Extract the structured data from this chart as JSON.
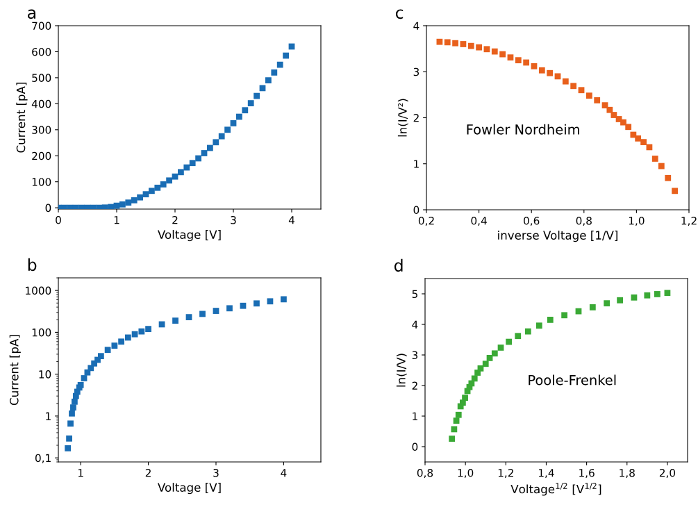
{
  "chart_data": [
    {
      "type": "scatter",
      "title": "a",
      "xlabel": "Voltage [V]",
      "ylabel": "Current [pA]",
      "marker": "square",
      "grid": false,
      "xlim": [
        0,
        4.5
      ],
      "xticks": [
        0,
        1,
        2,
        3,
        4
      ],
      "ylim": [
        -5,
        700
      ],
      "yticks": [
        0,
        100,
        200,
        300,
        400,
        500,
        600,
        700
      ],
      "series": [
        {
          "color": "#1a6db4",
          "x": [
            0,
            0.1,
            0.2,
            0.3,
            0.4,
            0.5,
            0.6,
            0.7,
            0.8,
            0.9,
            1.0,
            1.1,
            1.2,
            1.3,
            1.4,
            1.5,
            1.6,
            1.7,
            1.8,
            1.9,
            2.0,
            2.1,
            2.2,
            2.3,
            2.4,
            2.5,
            2.6,
            2.7,
            2.8,
            2.9,
            3.0,
            3.1,
            3.2,
            3.3,
            3.4,
            3.5,
            3.6,
            3.7,
            3.8,
            3.9,
            4.0
          ],
          "values": [
            0,
            0,
            0,
            0,
            0,
            0,
            0,
            0,
            1,
            3,
            8,
            13,
            20,
            29,
            40,
            52,
            65,
            77,
            90,
            105,
            120,
            137,
            155,
            172,
            190,
            210,
            230,
            252,
            275,
            300,
            325,
            350,
            375,
            402,
            430,
            460,
            490,
            520,
            550,
            585,
            620
          ]
        }
      ]
    },
    {
      "type": "scatter",
      "title": "b",
      "xlabel": "Voltage [V]",
      "ylabel": "Current [pA]",
      "marker": "square",
      "grid": false,
      "log": "y",
      "xlim": [
        0.67,
        4.55
      ],
      "xticks": [
        1,
        2,
        3,
        4
      ],
      "ylim": [
        0.08,
        2000
      ],
      "yticks": [
        {
          "value": 0.1,
          "label": "0,1"
        },
        1,
        10,
        100,
        1000
      ],
      "series": [
        {
          "color": "#1a6db4",
          "x": [
            0.81,
            0.83,
            0.85,
            0.87,
            0.89,
            0.91,
            0.93,
            0.95,
            0.98,
            1.0,
            1.05,
            1.1,
            1.15,
            1.2,
            1.25,
            1.3,
            1.4,
            1.5,
            1.6,
            1.7,
            1.8,
            1.9,
            2.0,
            2.2,
            2.4,
            2.6,
            2.8,
            3.0,
            3.2,
            3.4,
            3.6,
            3.8,
            4.0
          ],
          "values": [
            0.17,
            0.29,
            0.66,
            1.15,
            1.6,
            2.2,
            3,
            3.8,
            4.8,
            5.5,
            8,
            11,
            14,
            18,
            22,
            27,
            38,
            48,
            60,
            75,
            90,
            105,
            120,
            155,
            190,
            230,
            275,
            325,
            375,
            430,
            490,
            550,
            615
          ]
        }
      ]
    },
    {
      "type": "scatter",
      "title": "c",
      "xlabel": "inverse Voltage [1/V]",
      "ylabel": "ln(I/V²)",
      "marker": "square",
      "grid": false,
      "xlim": [
        0.2,
        1.2
      ],
      "xticks": [
        {
          "value": 0.2,
          "label": "0,2"
        },
        {
          "value": 0.4,
          "label": "0,4"
        },
        {
          "value": 0.6,
          "label": "0,6"
        },
        {
          "value": 0.8,
          "label": "0,8"
        },
        {
          "value": 1.0,
          "label": "1,0"
        },
        {
          "value": 1.2,
          "label": "1,2"
        }
      ],
      "ylim": [
        0,
        4
      ],
      "yticks": [
        0,
        1,
        2,
        3,
        4
      ],
      "annotations": [
        "Fowler Nordheim"
      ],
      "series": [
        {
          "color": "#e8601c",
          "x": [
            0.25,
            0.28,
            0.31,
            0.34,
            0.37,
            0.4,
            0.43,
            0.46,
            0.49,
            0.52,
            0.55,
            0.58,
            0.61,
            0.64,
            0.67,
            0.7,
            0.73,
            0.76,
            0.79,
            0.82,
            0.85,
            0.88,
            0.898,
            0.914,
            0.933,
            0.95,
            0.969,
            0.988,
            1.006,
            1.027,
            1.049,
            1.071,
            1.095,
            1.12,
            1.146
          ],
          "values": [
            3.65,
            3.64,
            3.62,
            3.6,
            3.56,
            3.53,
            3.49,
            3.44,
            3.38,
            3.31,
            3.25,
            3.2,
            3.12,
            3.03,
            2.97,
            2.9,
            2.79,
            2.69,
            2.6,
            2.48,
            2.38,
            2.27,
            2.17,
            2.06,
            1.97,
            1.9,
            1.8,
            1.63,
            1.55,
            1.47,
            1.36,
            1.11,
            0.95,
            0.69,
            0.41
          ]
        }
      ]
    },
    {
      "type": "scatter",
      "title": "d",
      "xlabel": "Voltage$^{1/2}$ [V$^{1/2}$]",
      "ylabel": "ln(I/V)",
      "marker": "square",
      "grid": false,
      "xlim": [
        0.8,
        2.1
      ],
      "xticks": [
        {
          "value": 0.8,
          "label": "0,8"
        },
        {
          "value": 1.0,
          "label": "1,0"
        },
        {
          "value": 1.2,
          "label": "1,2"
        },
        {
          "value": 1.4,
          "label": "1,4"
        },
        {
          "value": 1.6,
          "label": "1,6"
        },
        {
          "value": 1.8,
          "label": "1,8"
        },
        {
          "value": 2.0,
          "label": "2,0"
        }
      ],
      "ylim": [
        -0.5,
        5.5
      ],
      "yticks": [
        0,
        1,
        2,
        3,
        4,
        5
      ],
      "annotations": [
        "Poole-Frenkel"
      ],
      "series": [
        {
          "color": "#3aa935",
          "x": [
            0.933,
            0.944,
            0.955,
            0.966,
            0.976,
            0.987,
            0.998,
            1.01,
            1.02,
            1.03,
            1.045,
            1.06,
            1.075,
            1.1,
            1.12,
            1.145,
            1.175,
            1.215,
            1.26,
            1.31,
            1.365,
            1.42,
            1.49,
            1.56,
            1.63,
            1.7,
            1.765,
            1.835,
            1.9,
            1.95,
            2.0
          ],
          "values": [
            0.26,
            0.57,
            0.85,
            1.04,
            1.32,
            1.44,
            1.6,
            1.82,
            1.95,
            2.07,
            2.23,
            2.42,
            2.56,
            2.71,
            2.9,
            3.05,
            3.24,
            3.43,
            3.62,
            3.77,
            3.96,
            4.15,
            4.3,
            4.43,
            4.56,
            4.69,
            4.79,
            4.88,
            4.95,
            4.99,
            5.03
          ]
        }
      ]
    }
  ]
}
